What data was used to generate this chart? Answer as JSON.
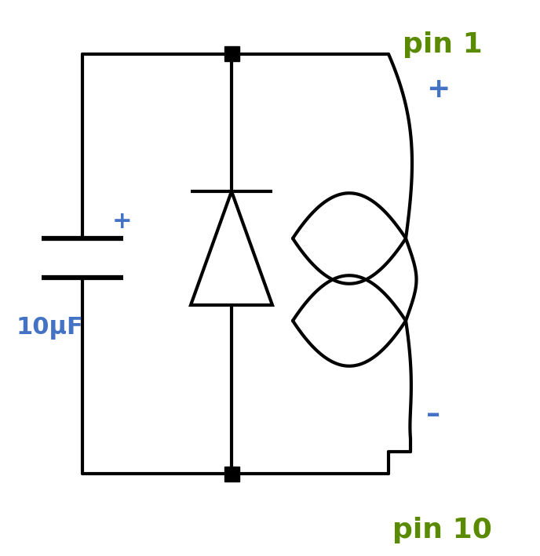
{
  "bg_color": "#ffffff",
  "line_color": "#000000",
  "blue_color": "#4472c4",
  "green_color": "#5a8a00",
  "line_width": 3.0,
  "cap_plus_label": "+",
  "cap_label": "10μF",
  "pin1_label": "pin 1",
  "pin10_label": "pin 10",
  "plus_label": "+",
  "minus_label": "–"
}
